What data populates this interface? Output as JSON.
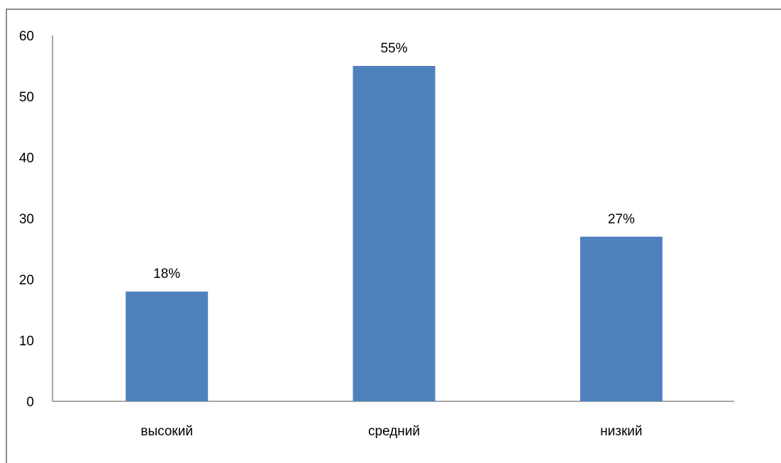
{
  "chart_data": {
    "type": "bar",
    "categories": [
      "высокий",
      "средний",
      "низкий"
    ],
    "values": [
      18,
      55,
      27
    ],
    "data_labels": [
      "18%",
      "55%",
      "27%"
    ],
    "yticks": [
      "0",
      "10",
      "20",
      "30",
      "40",
      "50",
      "60"
    ],
    "ylim": [
      0,
      60
    ],
    "grid": false,
    "legend": "none",
    "bar_color": "#4f81bd",
    "axis_color": "#8c8c8c"
  }
}
